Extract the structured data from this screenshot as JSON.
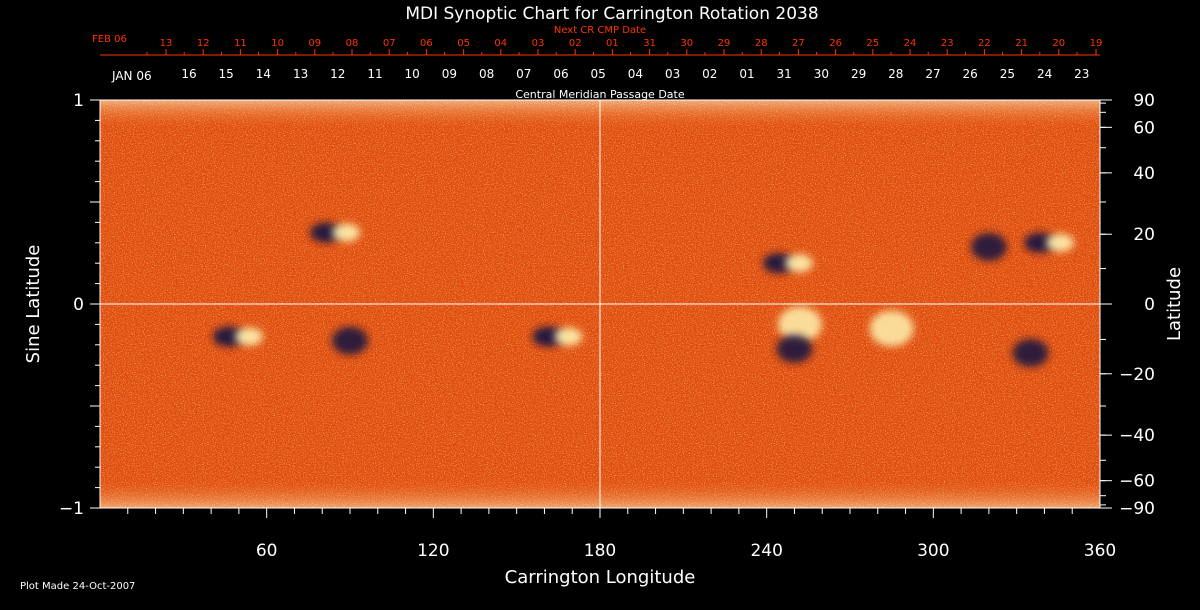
{
  "chart_data": {
    "type": "heatmap",
    "title": "MDI Synoptic Chart for Carrington Rotation 2038",
    "xlabel": "Carrington Longitude",
    "ylabel_left": "Sine Latitude",
    "ylabel_right": "Latitude",
    "xlim": [
      0,
      360
    ],
    "ylim": [
      -1,
      1
    ],
    "x_ticks": [
      "60",
      "120",
      "180",
      "240",
      "300",
      "360"
    ],
    "y_ticks_left": [
      "1",
      "0",
      "−1"
    ],
    "y_ticks_right": [
      "90",
      "60",
      "40",
      "20",
      "0",
      "−20",
      "−40",
      "−60",
      "−90"
    ],
    "y_ticks_right_values": [
      90,
      60,
      40,
      20,
      0,
      -20,
      -40,
      -60,
      -90
    ],
    "next_cr_label": "Next CR CMP Date",
    "next_cr_month_label": "FEB 06",
    "next_cr_dates": [
      "13",
      "12",
      "11",
      "10",
      "09",
      "08",
      "07",
      "06",
      "05",
      "04",
      "03",
      "02",
      "01",
      "31",
      "30",
      "29",
      "28",
      "27",
      "26",
      "25",
      "24",
      "23",
      "22",
      "21",
      "20",
      "19"
    ],
    "cmp_label": "Central Meridian Passage Date",
    "cmp_month_label": "JAN 06",
    "cmp_dates": [
      "16",
      "15",
      "14",
      "13",
      "12",
      "11",
      "10",
      "09",
      "08",
      "07",
      "06",
      "05",
      "04",
      "03",
      "02",
      "01",
      "31",
      "30",
      "29",
      "28",
      "27",
      "26",
      "25",
      "24",
      "23"
    ],
    "footer": "Plot Made 24-Oct-2007",
    "colors": {
      "background": "#000000",
      "field_base": "#e04a0a",
      "positive_polarity": "#fff3b0",
      "negative_polarity": "#1b1340",
      "axis": "#ffffff",
      "date_axis": "#ff3300"
    },
    "active_regions": [
      {
        "lon": 248,
        "sinlat": 0.2,
        "polarity": "bipolar"
      },
      {
        "lon": 252,
        "sinlat": -0.1,
        "polarity": "positive"
      },
      {
        "lon": 250,
        "sinlat": -0.22,
        "polarity": "negative"
      },
      {
        "lon": 165,
        "sinlat": -0.16,
        "polarity": "bipolar"
      },
      {
        "lon": 90,
        "sinlat": -0.18,
        "polarity": "negative"
      },
      {
        "lon": 50,
        "sinlat": -0.16,
        "polarity": "bipolar"
      },
      {
        "lon": 85,
        "sinlat": 0.35,
        "polarity": "bipolar"
      },
      {
        "lon": 320,
        "sinlat": 0.28,
        "polarity": "negative"
      },
      {
        "lon": 342,
        "sinlat": 0.3,
        "polarity": "bipolar"
      },
      {
        "lon": 285,
        "sinlat": -0.12,
        "polarity": "positive"
      },
      {
        "lon": 335,
        "sinlat": -0.24,
        "polarity": "negative"
      }
    ]
  }
}
